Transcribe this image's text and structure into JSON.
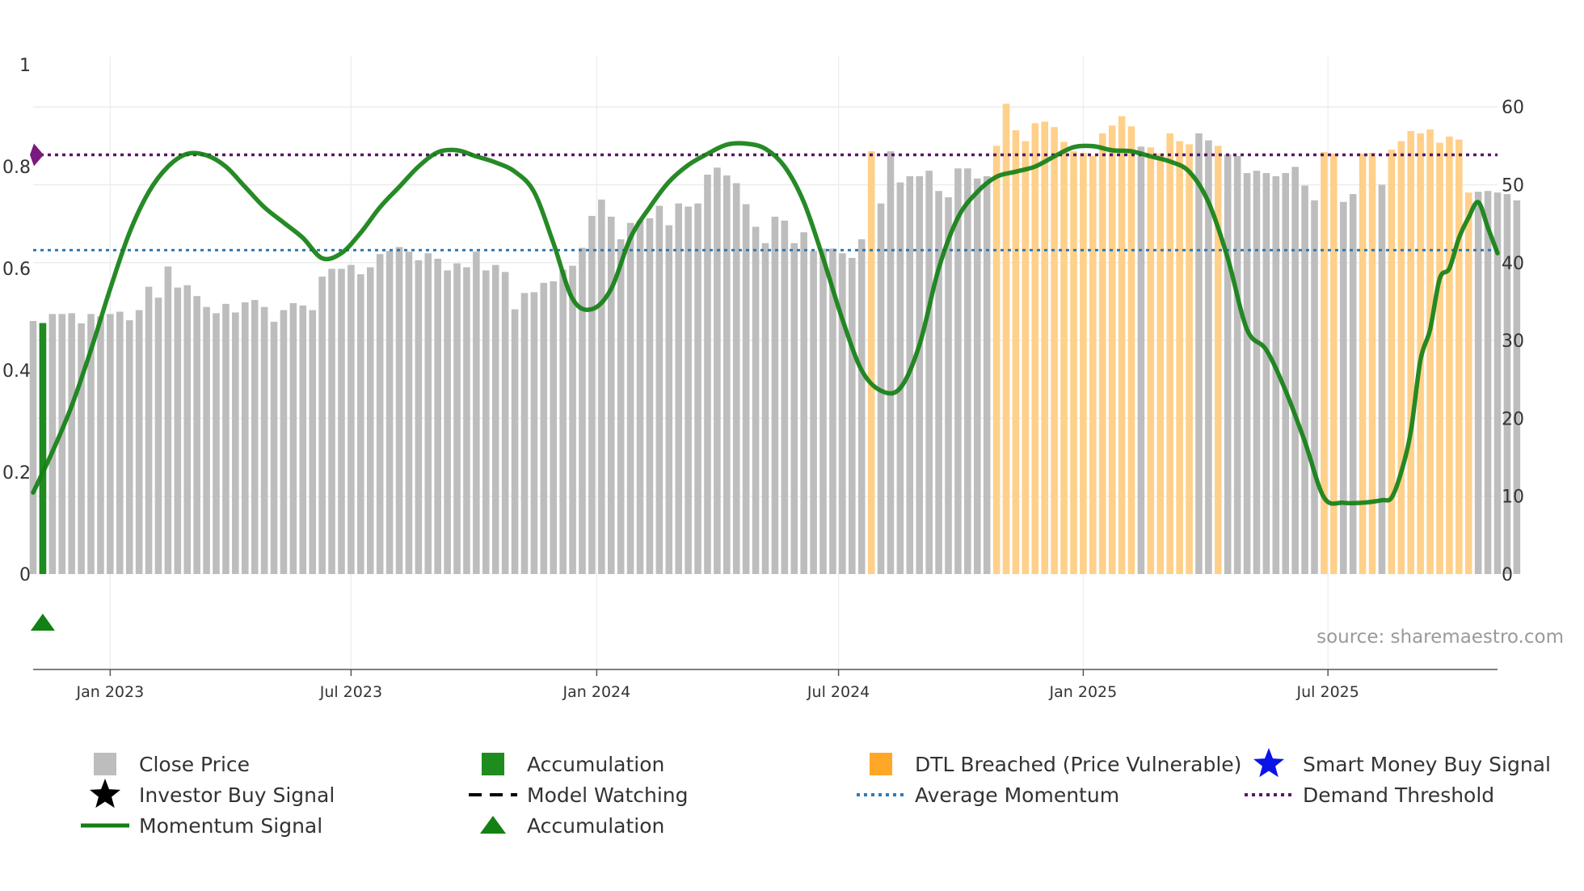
{
  "chart_data": {
    "type": "bar",
    "title": "",
    "source_label": "source: sharemaestro.com",
    "left_axis": {
      "range": [
        0,
        1
      ],
      "ticks": [
        "0",
        "0.2",
        "0.4",
        "0.6",
        "0.8",
        "1"
      ],
      "tick_values": [
        0,
        0.2,
        0.4,
        0.6,
        0.8,
        1.0
      ]
    },
    "right_axis": {
      "range": [
        0,
        66
      ],
      "ticks": [
        "0",
        "10",
        "20",
        "30",
        "40",
        "50",
        "60"
      ],
      "tick_values": [
        0,
        10,
        20,
        30,
        40,
        50,
        60
      ]
    },
    "x_axis": {
      "start_week": 0,
      "end_week": 152,
      "ticks": [
        {
          "label": "Jan 2023",
          "week": 8
        },
        {
          "label": "Jul 2023",
          "week": 33
        },
        {
          "label": "Jan 2024",
          "week": 58.5
        },
        {
          "label": "Jul 2024",
          "week": 83.6
        },
        {
          "label": "Jan 2025",
          "week": 109
        },
        {
          "label": "Jul 2025",
          "week": 134.4
        }
      ]
    },
    "close_price": {
      "name": "Close Price",
      "values": [
        32.5,
        32.3,
        33.4,
        33.4,
        33.5,
        32.2,
        33.4,
        33.1,
        33.4,
        33.7,
        32.6,
        33.9,
        36.9,
        35.5,
        39.5,
        36.8,
        37.1,
        35.7,
        34.3,
        33.5,
        34.7,
        33.6,
        34.9,
        35.2,
        34.3,
        32.4,
        33.9,
        34.8,
        34.5,
        33.9,
        38.2,
        39.2,
        39.2,
        39.7,
        38.5,
        39.4,
        41.1,
        41.5,
        42.0,
        41.4,
        40.3,
        41.2,
        40.5,
        39.0,
        39.9,
        39.4,
        41.4,
        39.0,
        39.7,
        38.8,
        34.0,
        36.1,
        36.2,
        37.4,
        37.6,
        39.1,
        39.6,
        41.9,
        46.0,
        48.1,
        45.9,
        43.0,
        45.1,
        45.4,
        45.7,
        47.3,
        44.8,
        47.6,
        47.2,
        47.6,
        51.3,
        52.2,
        51.2,
        50.2,
        47.5,
        44.6,
        42.5,
        45.9,
        45.4,
        42.5,
        43.9,
        41.5,
        41.8,
        41.8,
        41.2,
        40.6,
        43.0,
        47.8,
        47.6,
        54.3,
        50.3,
        51.1,
        51.1,
        51.8,
        49.2,
        48.4,
        52.1,
        52.1,
        50.8,
        51.1,
        51.2,
        49.4,
        53.9,
        55.0,
        52.1,
        53.8,
        54.6,
        55.2,
        56.0,
        55.4,
        54.7,
        54.0,
        53.5,
        52.5,
        53.5,
        54.9,
        53.6,
        56.3,
        55.9,
        57.5,
        57.0,
        56.6,
        55.7,
        55.3,
        53.9,
        53.7,
        51.5,
        51.8,
        51.5,
        51.1,
        51.5,
        52.3,
        49.9,
        48.0,
        50.2,
        48.0,
        47.8,
        48.8,
        50.2,
        48.1,
        50.0,
        54.4,
        51.6,
        53.7,
        53.7,
        52.9,
        53.8,
        53.6,
        51.2,
        49.9,
        49.1,
        49.2,
        49.0,
        48.8,
        48.0
      ]
    },
    "dtl_breached": {
      "name": "DTL Breached (Price Vulnerable)",
      "color": "#ffa726",
      "segments": [
        [
          87,
          87
        ],
        [
          100,
          114
        ],
        [
          116,
          120
        ],
        [
          123,
          123
        ],
        [
          134,
          135
        ],
        [
          138,
          139
        ],
        [
          141,
          149
        ]
      ],
      "overrides": {
        "87": 54.3,
        "100": 55.0,
        "101": 60.4,
        "102": 57.0,
        "103": 55.6,
        "104": 57.9,
        "105": 58.1,
        "106": 57.4,
        "107": 55.5,
        "108": 54.3,
        "109": 54.1,
        "110": 53.7,
        "111": 56.6,
        "112": 57.6,
        "113": 58.8,
        "114": 57.5,
        "116": 54.8,
        "117": 54.0,
        "118": 56.6,
        "119": 55.6,
        "120": 55.2,
        "123": 55.0,
        "134": 54.2,
        "135": 54.0,
        "138": 54.0,
        "139": 54.1,
        "141": 54.5,
        "142": 55.6,
        "143": 56.9,
        "144": 56.6,
        "145": 57.1,
        "146": 55.4,
        "147": 56.2,
        "148": 55.8,
        "149": 49.0
      }
    },
    "accumulation_bar": {
      "name": "Accumulation",
      "color": "#1f8c1f",
      "week": 1,
      "value": 32.2
    },
    "momentum_signal": {
      "name": "Momentum Signal",
      "color": "#138013",
      "points": [
        [
          0,
          0.16
        ],
        [
          2,
          0.24
        ],
        [
          4,
          0.33
        ],
        [
          6,
          0.44
        ],
        [
          8,
          0.56
        ],
        [
          10,
          0.67
        ],
        [
          12,
          0.75
        ],
        [
          14,
          0.8
        ],
        [
          16,
          0.825
        ],
        [
          18,
          0.822
        ],
        [
          20,
          0.8
        ],
        [
          22,
          0.76
        ],
        [
          24,
          0.72
        ],
        [
          26,
          0.69
        ],
        [
          28,
          0.66
        ],
        [
          30,
          0.62
        ],
        [
          32,
          0.63
        ],
        [
          34,
          0.67
        ],
        [
          36,
          0.72
        ],
        [
          38,
          0.76
        ],
        [
          40,
          0.8
        ],
        [
          42,
          0.828
        ],
        [
          44,
          0.832
        ],
        [
          46,
          0.82
        ],
        [
          48,
          0.808
        ],
        [
          50,
          0.79
        ],
        [
          52,
          0.75
        ],
        [
          54,
          0.65
        ],
        [
          56,
          0.54
        ],
        [
          58,
          0.52
        ],
        [
          60,
          0.56
        ],
        [
          62,
          0.66
        ],
        [
          64,
          0.72
        ],
        [
          66,
          0.77
        ],
        [
          68,
          0.803
        ],
        [
          70,
          0.825
        ],
        [
          72,
          0.843
        ],
        [
          74,
          0.845
        ],
        [
          76,
          0.835
        ],
        [
          78,
          0.8
        ],
        [
          80,
          0.73
        ],
        [
          82,
          0.62
        ],
        [
          84,
          0.5
        ],
        [
          86,
          0.4
        ],
        [
          88,
          0.36
        ],
        [
          90,
          0.365
        ],
        [
          92,
          0.45
        ],
        [
          94,
          0.6
        ],
        [
          96,
          0.7
        ],
        [
          98,
          0.75
        ],
        [
          100,
          0.78
        ],
        [
          102,
          0.79
        ],
        [
          104,
          0.8
        ],
        [
          106,
          0.82
        ],
        [
          108,
          0.838
        ],
        [
          110,
          0.84
        ],
        [
          112,
          0.832
        ],
        [
          114,
          0.83
        ],
        [
          116,
          0.82
        ],
        [
          118,
          0.81
        ],
        [
          120,
          0.79
        ],
        [
          122,
          0.73
        ],
        [
          124,
          0.62
        ],
        [
          126,
          0.48
        ],
        [
          128,
          0.44
        ],
        [
          130,
          0.36
        ],
        [
          132,
          0.26
        ],
        [
          134,
          0.15
        ],
        [
          136,
          0.14
        ],
        [
          138,
          0.14
        ],
        [
          140,
          0.145
        ],
        [
          141,
          0.15
        ],
        [
          142,
          0.2
        ],
        [
          143,
          0.28
        ],
        [
          144,
          0.42
        ],
        [
          145,
          0.48
        ],
        [
          146,
          0.58
        ],
        [
          147,
          0.6
        ],
        [
          148,
          0.66
        ],
        [
          149,
          0.7
        ],
        [
          150,
          0.73
        ],
        [
          151,
          0.68
        ],
        [
          152,
          0.63
        ]
      ]
    },
    "average_momentum": {
      "name": "Average Momentum",
      "value": 0.636,
      "color": "#2e7bb8"
    },
    "demand_threshold": {
      "name": "Demand Threshold",
      "value": 0.823,
      "color": "#5b1566"
    },
    "accumulation_marker": {
      "name": "Accumulation",
      "week": 1,
      "color": "#138013"
    },
    "threshold_marker": {
      "week": 0,
      "value": 0.823,
      "color": "#7a1a7e"
    },
    "legend": [
      {
        "label": "Close Price",
        "symbol": "square",
        "color": "#bdbdbd"
      },
      {
        "label": "Accumulation",
        "symbol": "square",
        "color": "#1f8c1f"
      },
      {
        "label": "DTL Breached (Price Vulnerable)",
        "symbol": "square",
        "color": "#ffa726"
      },
      {
        "label": "Smart Money Buy Signal",
        "symbol": "star",
        "color": "#0a14e6"
      },
      {
        "label": "Investor Buy Signal",
        "symbol": "star",
        "color": "#000000"
      },
      {
        "label": "Model Watching",
        "symbol": "dash",
        "color": "#000000"
      },
      {
        "label": "Average Momentum",
        "symbol": "dot-line",
        "color": "#2e7bb8"
      },
      {
        "label": "Demand Threshold",
        "symbol": "dot-line",
        "color": "#5b1566"
      },
      {
        "label": "Momentum Signal",
        "symbol": "line",
        "color": "#138013"
      },
      {
        "label": "Accumulation",
        "symbol": "triangle",
        "color": "#138013"
      }
    ]
  }
}
